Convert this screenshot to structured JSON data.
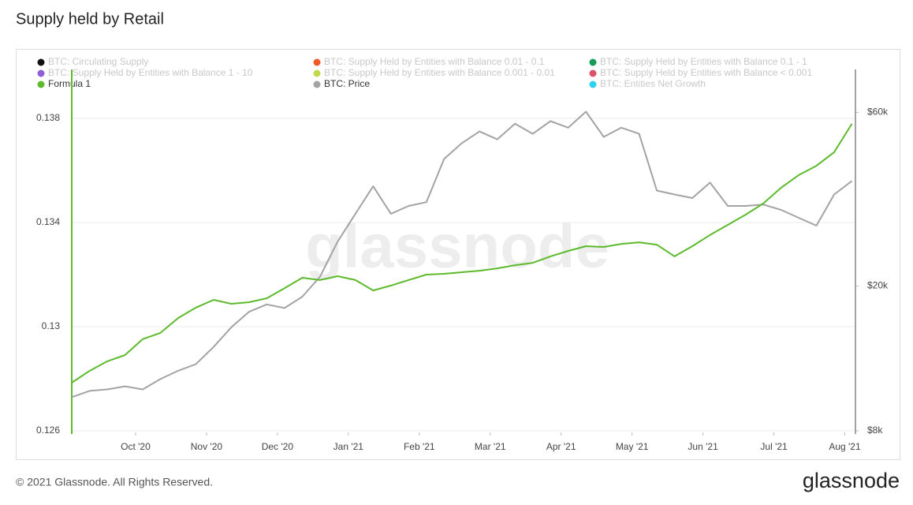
{
  "chart_data": {
    "type": "line",
    "title": "Supply held by Retail",
    "footer": "© 2021 Glassnode. All Rights Reserved.",
    "logo": "glassnode",
    "watermark": "glassnode",
    "x": [
      0.1,
      0.35,
      0.6,
      0.85,
      1.1,
      1.35,
      1.6,
      1.85,
      2.1,
      2.35,
      2.6,
      2.85,
      3.1,
      3.35,
      3.6,
      3.85,
      4.1,
      4.35,
      4.6,
      4.85,
      5.1,
      5.35,
      5.6,
      5.85,
      6.1,
      6.35,
      6.6,
      6.85,
      7.1,
      7.35,
      7.6,
      7.85,
      8.1,
      8.35,
      8.6,
      8.85,
      9.1,
      9.35,
      9.6,
      9.85,
      10.1,
      10.35,
      10.6,
      10.85,
      11.1
    ],
    "xlim": [
      0.1,
      11.15
    ],
    "xticks": [
      {
        "value": 1,
        "label": "Oct '20"
      },
      {
        "value": 2,
        "label": "Nov '20"
      },
      {
        "value": 3,
        "label": "Dec '20"
      },
      {
        "value": 4,
        "label": "Jan '21"
      },
      {
        "value": 5,
        "label": "Feb '21"
      },
      {
        "value": 6,
        "label": "Mar '21"
      },
      {
        "value": 7,
        "label": "Apr '21"
      },
      {
        "value": 8,
        "label": "May '21"
      },
      {
        "value": 9,
        "label": "Jun '21"
      },
      {
        "value": 10,
        "label": "Jul '21"
      },
      {
        "value": 11,
        "label": "Aug '21"
      }
    ],
    "ylim": [
      0.126,
      0.1395
    ],
    "yticks": [
      0.126,
      0.13,
      0.134,
      0.138
    ],
    "y2lim": [
      8000,
      74000
    ],
    "y2ticks": [
      {
        "value": 8000,
        "label": "$8k"
      },
      {
        "value": 20000,
        "label": "$20k"
      },
      {
        "value": 60000,
        "label": "$60k"
      }
    ],
    "y2_log": true,
    "grid": true,
    "series": [
      {
        "name": "BTC: Circulating Supply",
        "color": "#111111",
        "hidden": true
      },
      {
        "name": "BTC: Supply Held by Entities with Balance 1 - 10",
        "color": "#8e5fd6",
        "hidden": true
      },
      {
        "name": "Formula 1",
        "color": "#5cba2c",
        "values": [
          0.12785,
          0.1283,
          0.12867,
          0.12891,
          0.12952,
          0.12976,
          0.13033,
          0.13073,
          0.13103,
          0.13088,
          0.13094,
          0.13109,
          0.13148,
          0.13188,
          0.13179,
          0.13194,
          0.13179,
          0.13139,
          0.13158,
          0.13179,
          0.132,
          0.13203,
          0.13209,
          0.13215,
          0.13224,
          0.13236,
          0.13245,
          0.1327,
          0.13291,
          0.13309,
          0.13306,
          0.13318,
          0.13324,
          0.13315,
          0.1327,
          0.13309,
          0.13352,
          0.13391,
          0.1343,
          0.13473,
          0.13533,
          0.13582,
          0.13618,
          0.1367,
          0.13779
        ]
      },
      {
        "name": "BTC: Supply Held by Entities with Balance 0.01 - 0.1",
        "color": "#f0592a",
        "hidden": true
      },
      {
        "name": "BTC: Supply Held by Entities with Balance 0.001 - 0.01",
        "color": "#c3d94c",
        "hidden": true
      },
      {
        "name": "BTC: Price",
        "color": "#a3a3a3",
        "axis": "y2",
        "values": [
          9900,
          10300,
          10400,
          10600,
          10400,
          11100,
          11700,
          12200,
          13600,
          15400,
          17000,
          17800,
          17400,
          18700,
          21200,
          26500,
          31600,
          37600,
          31600,
          33200,
          34000,
          44700,
          49400,
          53200,
          50600,
          55900,
          52400,
          56800,
          54500,
          60300,
          51400,
          54500,
          52400,
          36600,
          35700,
          34900,
          38500,
          33200,
          33200,
          33500,
          32400,
          30800,
          29300,
          35700,
          38900
        ]
      },
      {
        "name": "BTC: Supply Held by Entities with Balance 0.1 - 1",
        "color": "#1a9a5b",
        "hidden": true
      },
      {
        "name": "BTC: Supply Held by Entities with Balance < 0.001",
        "color": "#d9546b",
        "hidden": true
      },
      {
        "name": "BTC: Entities Net Growth",
        "color": "#2bd3ef",
        "hidden": true
      }
    ]
  }
}
